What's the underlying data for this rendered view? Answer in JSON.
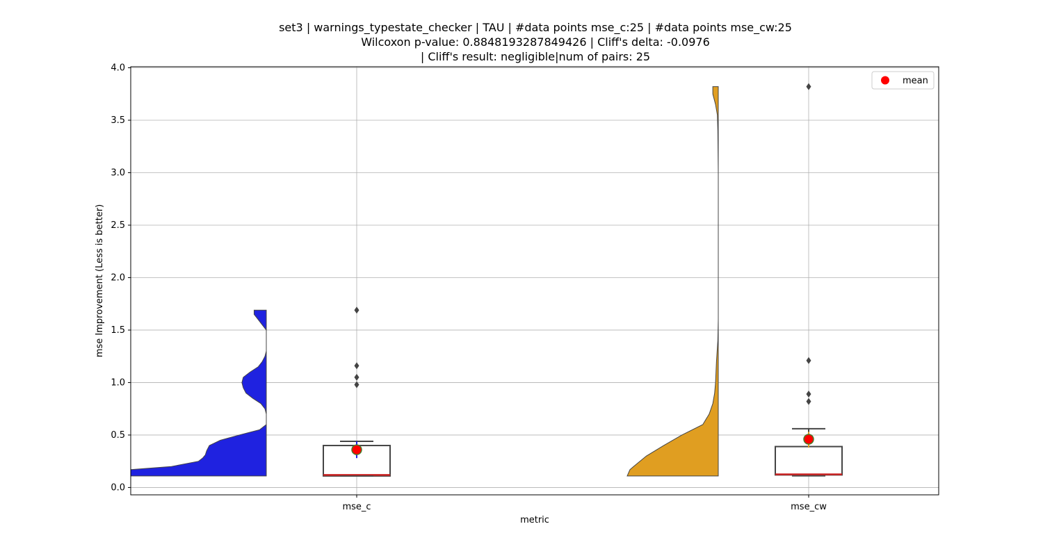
{
  "chart_data": {
    "type": "violin+box",
    "title_lines": [
      "set3 | warnings_typestate_checker | TAU | #data points mse_c:25 | #data points mse_cw:25",
      "Wilcoxon p-value: 0.8848193287849426 | Cliff's delta: -0.0976",
      "| Cliff's result: negligible|num of pairs: 25"
    ],
    "xlabel": "metric",
    "ylabel": "mse Improvement (Less is better)",
    "ylim": [
      -0.07,
      4.01
    ],
    "yticks": [
      0.0,
      0.5,
      1.0,
      1.5,
      2.0,
      2.5,
      3.0,
      3.5,
      4.0
    ],
    "ytick_labels": [
      "0.0",
      "0.5",
      "1.0",
      "1.5",
      "2.0",
      "2.5",
      "3.0",
      "3.5",
      "4.0"
    ],
    "grid": true,
    "legend": {
      "position": "top-right",
      "entries": [
        {
          "label": "mean",
          "color": "#ff0000"
        }
      ]
    },
    "categories": [
      "mse_c",
      "mse_cw"
    ],
    "series": [
      {
        "name": "mse_c",
        "violin_color": "#1f22e0",
        "violin_extent": [
          0.11,
          1.69
        ],
        "violin_profile": [
          [
            0.11,
            1.0
          ],
          [
            0.17,
            1.0
          ],
          [
            0.2,
            0.7
          ],
          [
            0.25,
            0.5
          ],
          [
            0.28,
            0.47
          ],
          [
            0.31,
            0.45
          ],
          [
            0.35,
            0.44
          ],
          [
            0.4,
            0.42
          ],
          [
            0.45,
            0.34
          ],
          [
            0.5,
            0.2
          ],
          [
            0.55,
            0.05
          ],
          [
            0.6,
            0.0
          ],
          [
            0.65,
            0.0
          ],
          [
            0.7,
            0.0
          ],
          [
            0.75,
            0.01
          ],
          [
            0.8,
            0.04
          ],
          [
            0.85,
            0.1
          ],
          [
            0.9,
            0.15
          ],
          [
            0.95,
            0.17
          ],
          [
            1.0,
            0.18
          ],
          [
            1.05,
            0.17
          ],
          [
            1.1,
            0.12
          ],
          [
            1.15,
            0.06
          ],
          [
            1.2,
            0.03
          ],
          [
            1.25,
            0.01
          ],
          [
            1.3,
            0.0
          ],
          [
            1.4,
            0.0
          ],
          [
            1.5,
            0.0
          ],
          [
            1.55,
            0.03
          ],
          [
            1.6,
            0.06
          ],
          [
            1.65,
            0.09
          ],
          [
            1.69,
            0.09
          ]
        ],
        "box": {
          "q1": 0.11,
          "median": 0.12,
          "q3": 0.4,
          "whisker_low": 0.11,
          "whisker_high": 0.44
        },
        "outliers": [
          0.98,
          1.05,
          1.16,
          1.69
        ],
        "mean": 0.36,
        "mean_error": [
          0.28,
          0.44
        ]
      },
      {
        "name": "mse_cw",
        "violin_color": "#e09e21",
        "violin_extent": [
          0.11,
          3.82
        ],
        "violin_profile": [
          [
            0.11,
            1.0
          ],
          [
            0.13,
            0.99
          ],
          [
            0.17,
            0.97
          ],
          [
            0.2,
            0.93
          ],
          [
            0.3,
            0.79
          ],
          [
            0.4,
            0.6
          ],
          [
            0.5,
            0.4
          ],
          [
            0.6,
            0.17
          ],
          [
            0.7,
            0.1
          ],
          [
            0.8,
            0.06
          ],
          [
            0.9,
            0.04
          ],
          [
            1.0,
            0.03
          ],
          [
            1.2,
            0.02
          ],
          [
            1.4,
            0.005
          ],
          [
            1.6,
            0.0
          ],
          [
            2.0,
            0.0
          ],
          [
            2.5,
            0.0
          ],
          [
            3.0,
            0.0
          ],
          [
            3.4,
            0.005
          ],
          [
            3.55,
            0.01
          ],
          [
            3.65,
            0.03
          ],
          [
            3.75,
            0.06
          ],
          [
            3.82,
            0.06
          ]
        ],
        "box": {
          "q1": 0.12,
          "median": 0.125,
          "q3": 0.39,
          "whisker_low": 0.11,
          "whisker_high": 0.56
        },
        "outliers": [
          0.82,
          0.89,
          1.21,
          3.82
        ],
        "mean": 0.46,
        "mean_error": [
          0.38,
          0.53
        ]
      }
    ]
  }
}
